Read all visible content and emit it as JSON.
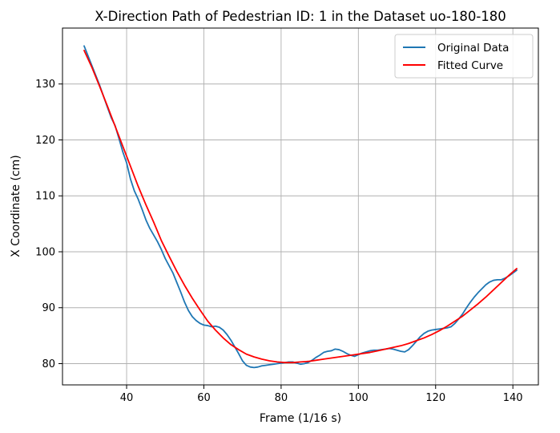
{
  "chart_data": {
    "type": "line",
    "title": "X-Direction Path of Pedestrian ID: 1 in the Dataset uo-180-180",
    "xlabel": "Frame (1/16 s)",
    "ylabel": "X Coordinate (cm)",
    "xlim": [
      23.4,
      146.6
    ],
    "ylim": [
      76.2,
      140.0
    ],
    "xticks": [
      40,
      60,
      80,
      100,
      120,
      140
    ],
    "yticks": [
      80,
      90,
      100,
      110,
      120,
      130
    ],
    "grid": true,
    "legend": {
      "position": "top-right"
    },
    "series": [
      {
        "name": "Original Data",
        "color": "#1f77b4",
        "x": [
          29,
          31,
          33,
          35,
          36,
          37,
          38,
          39,
          40,
          41,
          42,
          43,
          44,
          45,
          46,
          47,
          48,
          49,
          50,
          51,
          52,
          53,
          54,
          55,
          56,
          57,
          58,
          59,
          60,
          61,
          62,
          63,
          64,
          65,
          66,
          67,
          68,
          69,
          70,
          71,
          72,
          73,
          74,
          75,
          76,
          77,
          78,
          79,
          80,
          81,
          82,
          83,
          84,
          85,
          86,
          87,
          88,
          89,
          90,
          91,
          92,
          93,
          94,
          95,
          96,
          97,
          98,
          99,
          100,
          101,
          102,
          103,
          104,
          105,
          106,
          107,
          108,
          109,
          110,
          111,
          112,
          113,
          114,
          115,
          116,
          117,
          118,
          119,
          120,
          121,
          122,
          123,
          124,
          125,
          126,
          127,
          128,
          129,
          130,
          131,
          132,
          133,
          134,
          135,
          136,
          137,
          138,
          139,
          140,
          141
        ],
        "y": [
          136.8,
          133.3,
          129.8,
          125.9,
          124.0,
          122.6,
          120.3,
          117.9,
          115.9,
          113.0,
          110.9,
          109.4,
          107.6,
          105.7,
          104.2,
          103.0,
          101.8,
          100.4,
          98.8,
          97.5,
          96.2,
          94.5,
          92.8,
          91.0,
          89.5,
          88.4,
          87.7,
          87.2,
          86.9,
          86.8,
          86.6,
          86.7,
          86.5,
          86.0,
          85.2,
          84.2,
          83.0,
          81.8,
          80.5,
          79.7,
          79.4,
          79.3,
          79.4,
          79.6,
          79.7,
          79.8,
          79.9,
          80.0,
          80.1,
          80.2,
          80.3,
          80.3,
          80.1,
          79.9,
          80.0,
          80.2,
          80.6,
          81.1,
          81.5,
          82.0,
          82.2,
          82.3,
          82.6,
          82.5,
          82.2,
          81.8,
          81.5,
          81.3,
          81.6,
          81.9,
          82.1,
          82.3,
          82.4,
          82.4,
          82.5,
          82.6,
          82.7,
          82.6,
          82.4,
          82.2,
          82.1,
          82.5,
          83.2,
          84.0,
          84.8,
          85.4,
          85.8,
          86.0,
          86.1,
          86.2,
          86.3,
          86.4,
          86.6,
          87.2,
          88.0,
          88.9,
          90.0,
          91.0,
          91.9,
          92.7,
          93.4,
          94.1,
          94.6,
          94.9,
          95.0,
          95.0,
          95.3,
          95.7,
          96.2,
          96.7
        ]
      },
      {
        "name": "Fitted Curve",
        "color": "#ff0000",
        "x": [
          29,
          31,
          33,
          35,
          37,
          39,
          41,
          43,
          45,
          47,
          49,
          51,
          53,
          55,
          57,
          59,
          61,
          63,
          65,
          67,
          69,
          71,
          73,
          75,
          77,
          79,
          81,
          83,
          85,
          87,
          89,
          91,
          93,
          95,
          97,
          99,
          101,
          103,
          105,
          107,
          109,
          111,
          113,
          115,
          117,
          119,
          121,
          123,
          125,
          127,
          129,
          131,
          133,
          135,
          137,
          139,
          141
        ],
        "y": [
          136.0,
          133.0,
          129.6,
          126.1,
          122.5,
          118.9,
          115.3,
          111.7,
          108.4,
          105.3,
          102.0,
          99.2,
          96.5,
          94.0,
          91.7,
          89.6,
          87.6,
          86.0,
          84.6,
          83.4,
          82.5,
          81.7,
          81.2,
          80.8,
          80.5,
          80.3,
          80.2,
          80.2,
          80.3,
          80.4,
          80.6,
          80.8,
          81.0,
          81.2,
          81.4,
          81.6,
          81.8,
          82.0,
          82.3,
          82.6,
          82.9,
          83.2,
          83.6,
          84.1,
          84.6,
          85.2,
          85.9,
          86.7,
          87.6,
          88.5,
          89.6,
          90.7,
          91.9,
          93.2,
          94.5,
          95.8,
          97.0
        ]
      }
    ]
  }
}
